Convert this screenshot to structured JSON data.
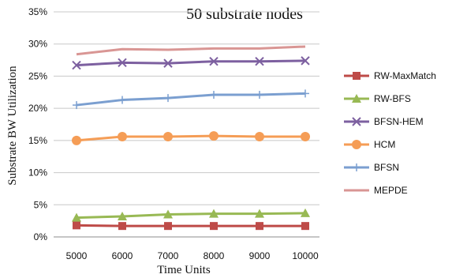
{
  "chart_data": {
    "type": "line",
    "title": "50 substrate nodes",
    "xlabel": "Time Units",
    "ylabel": "Substrate BW Utilization",
    "categories": [
      "5000",
      "6000",
      "7000",
      "8000",
      "9000",
      "10000"
    ],
    "ylim": [
      0,
      0.35
    ],
    "yticks": [
      "0%",
      "5%",
      "10%",
      "15%",
      "20%",
      "25%",
      "30%",
      "35%"
    ],
    "grid": true,
    "legend_position": "right",
    "series": [
      {
        "name": "RW-MaxMatch",
        "color": "#be4b48",
        "marker": "square",
        "values": [
          0.018,
          0.017,
          0.017,
          0.017,
          0.017,
          0.017
        ]
      },
      {
        "name": "RW-BFS",
        "color": "#98b954",
        "marker": "triangle",
        "values": [
          0.03,
          0.032,
          0.035,
          0.036,
          0.036,
          0.037
        ]
      },
      {
        "name": "BFSN-HEM",
        "color": "#7d60a0",
        "marker": "x",
        "values": [
          0.267,
          0.271,
          0.27,
          0.273,
          0.273,
          0.274
        ]
      },
      {
        "name": "HCM",
        "color": "#f59d56",
        "marker": "circle",
        "values": [
          0.15,
          0.156,
          0.156,
          0.157,
          0.156,
          0.156
        ]
      },
      {
        "name": "BFSN",
        "color": "#7b9fd0",
        "marker": "plus",
        "values": [
          0.205,
          0.213,
          0.216,
          0.221,
          0.221,
          0.223
        ]
      },
      {
        "name": "MEPDE",
        "color": "#d99694",
        "marker": "none",
        "values": [
          0.284,
          0.292,
          0.291,
          0.293,
          0.293,
          0.296
        ]
      }
    ]
  }
}
